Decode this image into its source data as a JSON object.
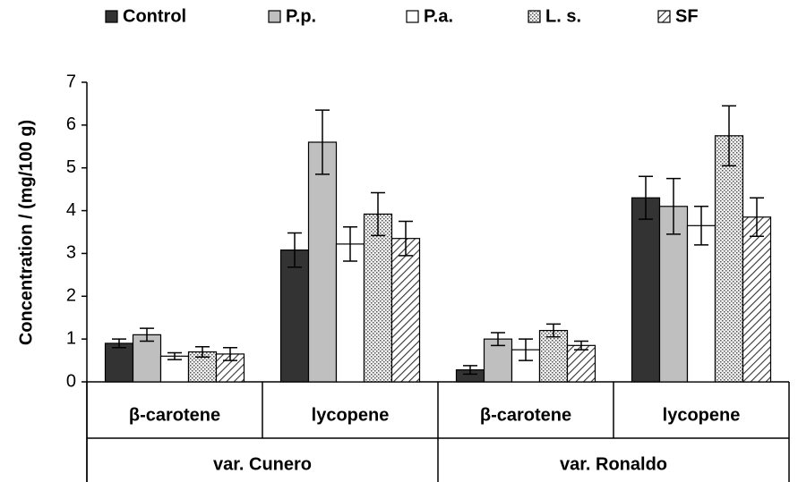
{
  "chart_data": {
    "type": "bar",
    "y_axis_label": "Concentration / (mg/100 g)",
    "categories": [
      "β-carotene",
      "lycopene",
      "β-carotene",
      "lycopene"
    ],
    "groups": [
      "var. Cunero",
      "var. Ronaldo"
    ],
    "ylim": [
      0,
      7
    ],
    "yticks": [
      0,
      1,
      2,
      3,
      4,
      5,
      6,
      7
    ],
    "legend": "top",
    "series": [
      {
        "name": "Control",
        "color": "#333333",
        "pattern": "solid",
        "values": [
          0.9,
          3.08,
          0.28,
          4.3
        ],
        "errors": [
          0.1,
          0.4,
          0.1,
          0.5
        ]
      },
      {
        "name": "P.p.",
        "color": "#bfbfbf",
        "pattern": "solid",
        "values": [
          1.1,
          5.6,
          1.0,
          4.1
        ],
        "errors": [
          0.15,
          0.75,
          0.15,
          0.65
        ]
      },
      {
        "name": "P.a.",
        "color": "#ffffff",
        "pattern": "solid",
        "values": [
          0.6,
          3.22,
          0.75,
          3.65
        ],
        "errors": [
          0.08,
          0.4,
          0.25,
          0.45
        ]
      },
      {
        "name": "L. s.",
        "color": "#e0e0e0",
        "pattern": "dots",
        "values": [
          0.7,
          3.92,
          1.2,
          5.75
        ],
        "errors": [
          0.12,
          0.5,
          0.15,
          0.7
        ]
      },
      {
        "name": "SF",
        "color": "#ffffff",
        "pattern": "hatch",
        "values": [
          0.65,
          3.35,
          0.85,
          3.85
        ],
        "errors": [
          0.15,
          0.4,
          0.1,
          0.45
        ]
      }
    ]
  }
}
